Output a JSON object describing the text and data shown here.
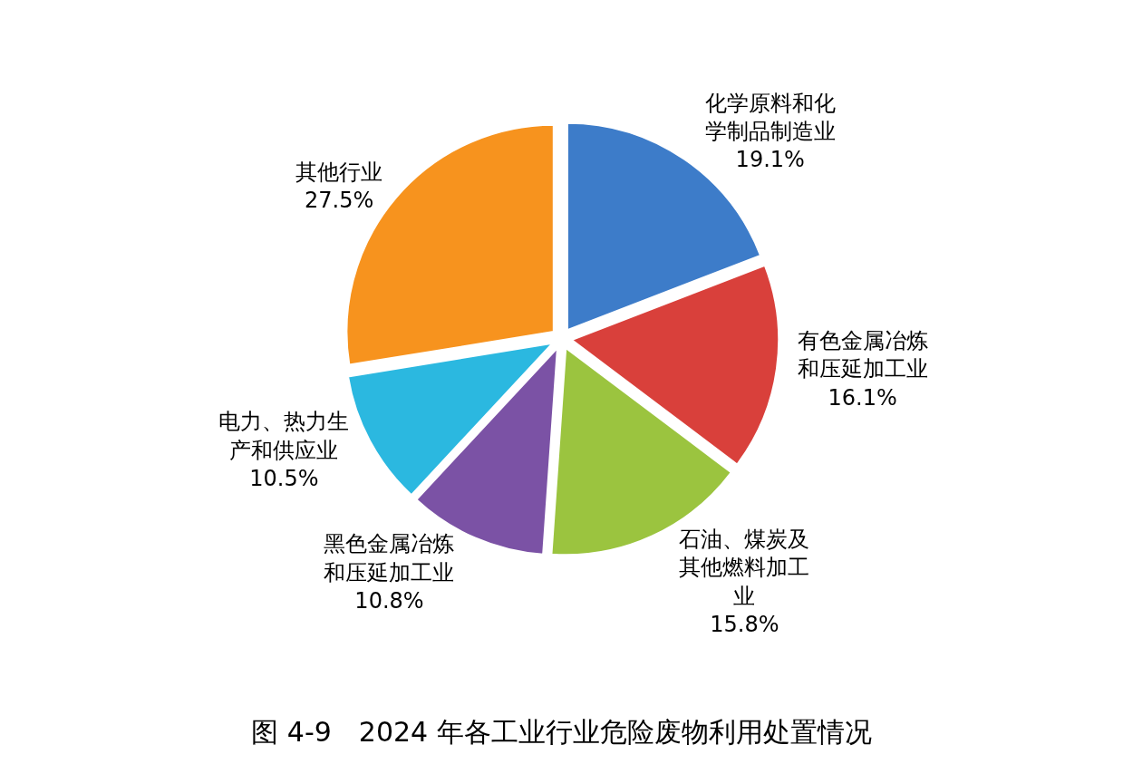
{
  "chart_data": {
    "type": "pie",
    "title": "图 4-9　2024 年各工业行业危险废物利用处置情况",
    "categories": [
      "化学原料和化学制品制造业",
      "有色金属冶炼和压延加工业",
      "石油、煤炭及其他燃料加工业",
      "黑色金属冶炼和压延加工业",
      "电力、热力生产和供应业",
      "其他行业"
    ],
    "values": [
      19.1,
      16.1,
      15.8,
      10.8,
      10.5,
      27.5
    ],
    "value_labels": [
      "19.1%",
      "16.1%",
      "15.8%",
      "10.8%",
      "10.5%",
      "27.5%"
    ],
    "colors": [
      "#3d7cc9",
      "#d9403b",
      "#9bc43f",
      "#7b52a5",
      "#2bb8e0",
      "#f7931e"
    ],
    "legend": false
  }
}
